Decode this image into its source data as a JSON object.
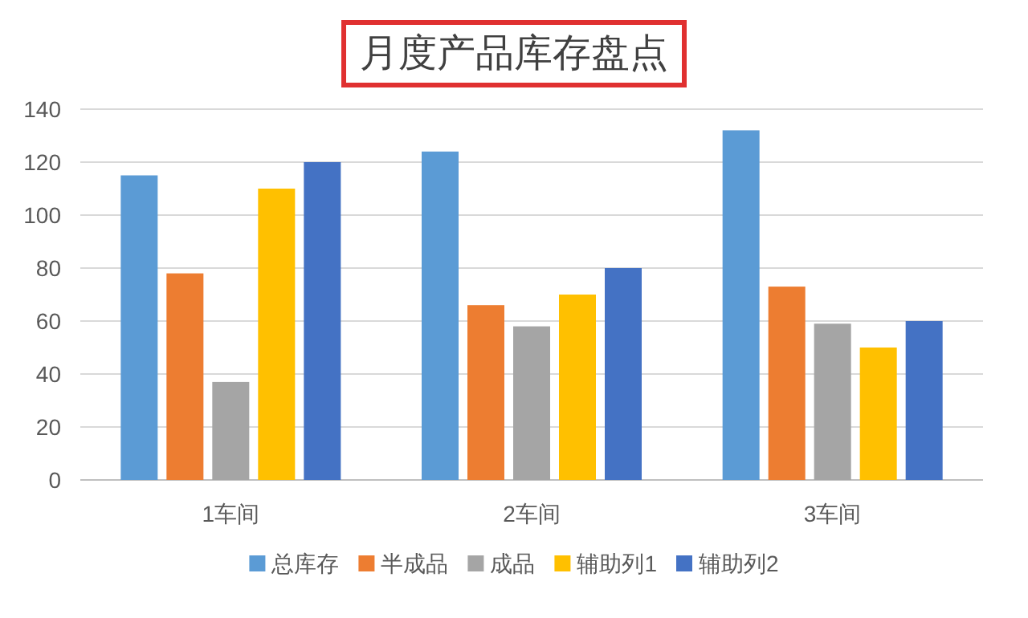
{
  "chart_data": {
    "type": "bar",
    "title": "月度产品库存盘点",
    "categories": [
      "1车间",
      "2车间",
      "3车间"
    ],
    "series": [
      {
        "name": "总库存",
        "color": "#5b9bd5",
        "values": [
          115,
          124,
          132
        ]
      },
      {
        "name": "半成品",
        "color": "#ed7d31",
        "values": [
          78,
          66,
          73
        ]
      },
      {
        "name": "成品",
        "color": "#a5a5a5",
        "values": [
          37,
          58,
          59
        ]
      },
      {
        "name": "辅助列1",
        "color": "#ffc000",
        "values": [
          110,
          70,
          50
        ]
      },
      {
        "name": "辅助列2",
        "color": "#4472c4",
        "values": [
          120,
          80,
          60
        ]
      }
    ],
    "ylim": [
      0,
      140
    ],
    "yticks": [
      0,
      20,
      40,
      60,
      80,
      100,
      120,
      140
    ],
    "grid": "y",
    "legend": "bottom"
  }
}
